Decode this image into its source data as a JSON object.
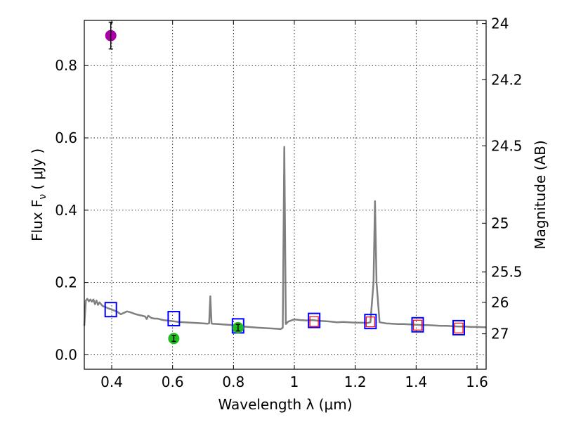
{
  "chart_data": {
    "type": "scatter",
    "title": "",
    "xlabel": "Wavelength  λ (μm)",
    "ylabel": "Flux  F",
    "ylabel_sub": "ν",
    "ylabel_unit": "( μJy )",
    "y2label": "Magnitude (AB)",
    "xlim": [
      0.31,
      1.63
    ],
    "ylim": [
      -0.04,
      0.925
    ],
    "x_ticks": [
      0.4,
      0.6,
      0.8,
      1.0,
      1.2,
      1.4,
      1.6
    ],
    "x_tick_labels": [
      "0.4",
      "0.6",
      "0.8",
      "1",
      "1.2",
      "1.4",
      "1.6"
    ],
    "y_ticks": [
      0.0,
      0.2,
      0.4,
      0.6,
      0.8
    ],
    "y_tick_labels": [
      "0.0",
      "0.2",
      "0.4",
      "0.6",
      "0.8"
    ],
    "y2_ticks": [
      {
        "flux": 0.916,
        "label": "24"
      },
      {
        "flux": 0.761,
        "label": "24.2"
      },
      {
        "flux": 0.578,
        "label": "24.5"
      },
      {
        "flux": 0.364,
        "label": "25"
      },
      {
        "flux": 0.229,
        "label": "25.5"
      },
      {
        "flux": 0.145,
        "label": "26"
      },
      {
        "flux": 0.058,
        "label": "27"
      }
    ],
    "grid": true,
    "colors": {
      "spectrum": "#808080",
      "model_box": "#0000ff",
      "red_box": "#ff0000",
      "green_point": "#22bb22",
      "purple_point": "#aa00aa",
      "errorbar": "#000000"
    },
    "spectrum": [
      [
        0.31,
        0.08
      ],
      [
        0.315,
        0.15
      ],
      [
        0.32,
        0.155
      ],
      [
        0.325,
        0.148
      ],
      [
        0.33,
        0.153
      ],
      [
        0.335,
        0.147
      ],
      [
        0.34,
        0.153
      ],
      [
        0.345,
        0.14
      ],
      [
        0.35,
        0.15
      ],
      [
        0.355,
        0.138
      ],
      [
        0.36,
        0.145
      ],
      [
        0.37,
        0.135
      ],
      [
        0.38,
        0.132
      ],
      [
        0.39,
        0.128
      ],
      [
        0.4,
        0.125
      ],
      [
        0.41,
        0.122
      ],
      [
        0.42,
        0.118
      ],
      [
        0.43,
        0.112
      ],
      [
        0.44,
        0.116
      ],
      [
        0.45,
        0.12
      ],
      [
        0.46,
        0.118
      ],
      [
        0.47,
        0.115
      ],
      [
        0.48,
        0.112
      ],
      [
        0.49,
        0.11
      ],
      [
        0.5,
        0.108
      ],
      [
        0.51,
        0.106
      ],
      [
        0.515,
        0.099
      ],
      [
        0.52,
        0.108
      ],
      [
        0.53,
        0.102
      ],
      [
        0.54,
        0.1
      ],
      [
        0.55,
        0.1
      ],
      [
        0.56,
        0.098
      ],
      [
        0.57,
        0.096
      ],
      [
        0.58,
        0.095
      ],
      [
        0.6,
        0.093
      ],
      [
        0.62,
        0.091
      ],
      [
        0.64,
        0.09
      ],
      [
        0.66,
        0.089
      ],
      [
        0.68,
        0.088
      ],
      [
        0.7,
        0.087
      ],
      [
        0.715,
        0.086
      ],
      [
        0.72,
        0.087
      ],
      [
        0.724,
        0.162
      ],
      [
        0.728,
        0.087
      ],
      [
        0.73,
        0.086
      ],
      [
        0.75,
        0.085
      ],
      [
        0.78,
        0.083
      ],
      [
        0.8,
        0.082
      ],
      [
        0.82,
        0.079
      ],
      [
        0.85,
        0.077
      ],
      [
        0.88,
        0.075
      ],
      [
        0.9,
        0.074
      ],
      [
        0.92,
        0.073
      ],
      [
        0.94,
        0.072
      ],
      [
        0.955,
        0.071
      ],
      [
        0.962,
        0.075
      ],
      [
        0.967,
        0.575
      ],
      [
        0.972,
        0.085
      ],
      [
        0.98,
        0.092
      ],
      [
        1.0,
        0.098
      ],
      [
        1.02,
        0.096
      ],
      [
        1.04,
        0.095
      ],
      [
        1.06,
        0.096
      ],
      [
        1.08,
        0.094
      ],
      [
        1.1,
        0.093
      ],
      [
        1.12,
        0.092
      ],
      [
        1.14,
        0.09
      ],
      [
        1.16,
        0.091
      ],
      [
        1.18,
        0.09
      ],
      [
        1.2,
        0.089
      ],
      [
        1.22,
        0.089
      ],
      [
        1.24,
        0.088
      ],
      [
        1.25,
        0.09
      ],
      [
        1.26,
        0.2
      ],
      [
        1.265,
        0.425
      ],
      [
        1.27,
        0.2
      ],
      [
        1.28,
        0.09
      ],
      [
        1.3,
        0.087
      ],
      [
        1.32,
        0.086
      ],
      [
        1.34,
        0.085
      ],
      [
        1.36,
        0.085
      ],
      [
        1.38,
        0.084
      ],
      [
        1.4,
        0.083
      ],
      [
        1.42,
        0.082
      ],
      [
        1.44,
        0.082
      ],
      [
        1.46,
        0.081
      ],
      [
        1.48,
        0.08
      ],
      [
        1.5,
        0.08
      ],
      [
        1.52,
        0.079
      ],
      [
        1.54,
        0.078
      ],
      [
        1.56,
        0.078
      ],
      [
        1.58,
        0.077
      ],
      [
        1.6,
        0.077
      ],
      [
        1.63,
        0.076
      ]
    ],
    "model_boxes": [
      {
        "x": 0.397,
        "y": 0.125
      },
      {
        "x": 0.604,
        "y": 0.1
      },
      {
        "x": 0.815,
        "y": 0.08
      },
      {
        "x": 1.065,
        "y": 0.095
      },
      {
        "x": 1.25,
        "y": 0.092
      },
      {
        "x": 1.405,
        "y": 0.083
      },
      {
        "x": 1.54,
        "y": 0.075
      }
    ],
    "red_boxes": [
      {
        "x": 1.065,
        "y": 0.092
      },
      {
        "x": 1.25,
        "y": 0.091
      },
      {
        "x": 1.405,
        "y": 0.082
      },
      {
        "x": 1.54,
        "y": 0.074
      }
    ],
    "green_points": [
      {
        "x": 0.604,
        "y": 0.045,
        "err": 0.008
      },
      {
        "x": 0.815,
        "y": 0.075,
        "err": 0.009
      }
    ],
    "purple_points": [
      {
        "x": 0.397,
        "y": 0.883,
        "err": 0.037
      }
    ]
  }
}
